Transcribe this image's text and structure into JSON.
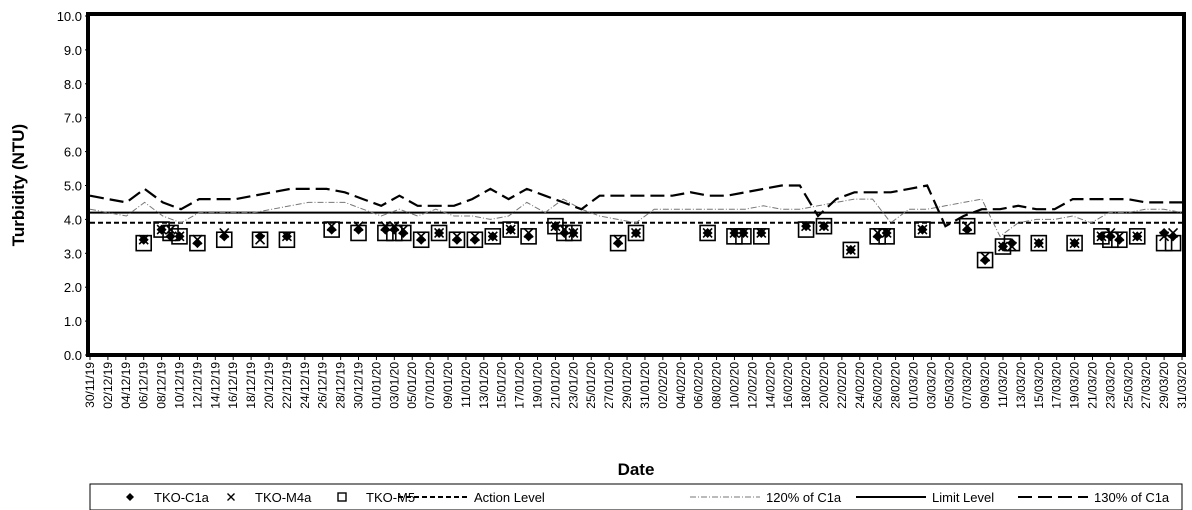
{
  "chart_data": {
    "type": "scatter",
    "xlabel": "Date",
    "ylabel": "Turbidity (NTU)",
    "ylim": [
      0,
      10
    ],
    "yticks": [
      "0.0",
      "1.0",
      "2.0",
      "3.0",
      "4.0",
      "5.0",
      "6.0",
      "7.0",
      "8.0",
      "9.0",
      "10.0"
    ],
    "x_start": "30/11/19",
    "x_end": "31/03/20",
    "x_tick_labels": [
      "30/11/19",
      "02/12/19",
      "04/12/19",
      "06/12/19",
      "08/12/19",
      "10/12/19",
      "12/12/19",
      "14/12/19",
      "16/12/19",
      "18/12/19",
      "20/12/19",
      "22/12/19",
      "24/12/19",
      "26/12/19",
      "28/12/19",
      "30/12/19",
      "01/01/20",
      "03/01/20",
      "05/01/20",
      "07/01/20",
      "09/01/20",
      "11/01/20",
      "13/01/20",
      "15/01/20",
      "17/01/20",
      "19/01/20",
      "21/01/20",
      "23/01/20",
      "25/01/20",
      "27/01/20",
      "29/01/20",
      "31/01/20",
      "02/02/20",
      "04/02/20",
      "06/02/20",
      "08/02/20",
      "10/02/20",
      "12/02/20",
      "14/02/20",
      "16/02/20",
      "18/02/20",
      "20/02/20",
      "22/02/20",
      "24/02/20",
      "26/02/20",
      "28/02/20",
      "01/03/20",
      "03/03/20",
      "05/03/20",
      "07/03/20",
      "09/03/20",
      "11/03/20",
      "13/03/20",
      "15/03/20",
      "17/03/20",
      "19/03/20",
      "21/03/20",
      "23/03/20",
      "25/03/20",
      "27/03/20",
      "29/03/20",
      "31/03/20"
    ],
    "legend_position": "bottom",
    "dates": [
      "06/12/19",
      "08/12/19",
      "09/12/19",
      "10/12/19",
      "12/12/19",
      "15/12/19",
      "19/12/19",
      "22/12/19",
      "27/12/19",
      "30/12/19",
      "02/01/20",
      "03/01/20",
      "04/01/20",
      "06/01/20",
      "08/01/20",
      "10/01/20",
      "12/01/20",
      "14/01/20",
      "16/01/20",
      "18/01/20",
      "21/01/20",
      "22/01/20",
      "23/01/20",
      "28/01/20",
      "30/01/20",
      "07/02/20",
      "10/02/20",
      "11/02/20",
      "13/02/20",
      "18/02/20",
      "20/02/20",
      "23/02/20",
      "26/02/20",
      "27/02/20",
      "02/03/20",
      "07/03/20",
      "09/03/20",
      "11/03/20",
      "12/03/20",
      "15/03/20",
      "19/03/20",
      "22/03/20",
      "23/03/20",
      "24/03/20",
      "26/03/20",
      "29/03/20",
      "30/03/20"
    ],
    "series": [
      {
        "name": "TKO-C1a",
        "marker": "diamond",
        "color": "#000000",
        "values": [
          3.4,
          3.7,
          3.5,
          3.5,
          3.3,
          3.5,
          3.5,
          3.5,
          3.7,
          3.7,
          3.7,
          3.7,
          3.6,
          3.4,
          3.6,
          3.4,
          3.4,
          3.5,
          3.7,
          3.5,
          3.8,
          3.6,
          3.6,
          3.3,
          3.6,
          3.6,
          3.6,
          3.6,
          3.6,
          3.8,
          3.8,
          3.1,
          3.5,
          3.6,
          3.7,
          3.7,
          2.8,
          3.2,
          3.3,
          3.3,
          3.3,
          3.5,
          3.5,
          3.4,
          3.5,
          3.6,
          3.5
        ]
      },
      {
        "name": "TKO-M4a",
        "marker": "x",
        "color": "#000000",
        "values": [
          3.4,
          3.7,
          3.7,
          3.5,
          3.4,
          3.6,
          3.4,
          3.5,
          3.8,
          3.8,
          3.8,
          3.8,
          3.7,
          3.5,
          3.6,
          3.5,
          3.5,
          3.5,
          3.7,
          3.6,
          3.8,
          3.7,
          3.6,
          3.4,
          3.6,
          3.6,
          3.6,
          3.6,
          3.6,
          3.8,
          3.8,
          3.1,
          3.6,
          3.6,
          3.7,
          3.8,
          2.9,
          3.2,
          3.2,
          3.3,
          3.3,
          3.5,
          3.6,
          3.5,
          3.5,
          3.5,
          3.6
        ]
      },
      {
        "name": "TKO-M5",
        "marker": "square",
        "color": "#000000",
        "values": [
          3.3,
          3.7,
          3.6,
          3.5,
          3.3,
          3.4,
          3.4,
          3.4,
          3.7,
          3.6,
          3.6,
          3.6,
          3.6,
          3.4,
          3.6,
          3.4,
          3.4,
          3.5,
          3.7,
          3.5,
          3.8,
          3.6,
          3.6,
          3.3,
          3.6,
          3.6,
          3.5,
          3.5,
          3.5,
          3.7,
          3.8,
          3.1,
          3.5,
          3.5,
          3.7,
          3.8,
          2.8,
          3.2,
          3.3,
          3.3,
          3.3,
          3.5,
          3.4,
          3.4,
          3.5,
          3.3,
          3.3
        ]
      }
    ],
    "reference_lines": [
      {
        "name": "Action Level",
        "style": "dashed",
        "value": 3.9
      },
      {
        "name": "Limit Level",
        "style": "solid",
        "value": 4.2
      }
    ],
    "computed_lines": [
      {
        "name": "120% of C1a",
        "style": "dash-dot-thin",
        "values": [
          4.3,
          4.2,
          4.1,
          4.5,
          4.1,
          3.9,
          4.2,
          4.2,
          4.2,
          4.2,
          4.3,
          4.4,
          4.5,
          4.5,
          4.5,
          4.3,
          4.1,
          4.3,
          4.1,
          4.3,
          4.1,
          4.1,
          4.0,
          4.1,
          4.5,
          4.2,
          4.6,
          4.3,
          4.1,
          4.0,
          3.9,
          4.3,
          4.3,
          4.3,
          4.3,
          4.3,
          4.3,
          4.4,
          4.3,
          4.3,
          4.4,
          4.5,
          4.6,
          4.6,
          3.9,
          4.3,
          4.3,
          4.4,
          4.5,
          4.6,
          3.5,
          3.9,
          4.0,
          4.0,
          4.1,
          3.9,
          4.2,
          4.2,
          4.3,
          4.3,
          4.2
        ]
      },
      {
        "name": "130% of C1a",
        "style": "long-dash",
        "values": [
          4.7,
          4.6,
          4.5,
          4.9,
          4.5,
          4.3,
          4.6,
          4.6,
          4.6,
          4.7,
          4.8,
          4.9,
          4.9,
          4.9,
          4.8,
          4.6,
          4.4,
          4.7,
          4.4,
          4.4,
          4.4,
          4.6,
          4.9,
          4.6,
          4.9,
          4.7,
          4.5,
          4.3,
          4.7,
          4.7,
          4.7,
          4.7,
          4.7,
          4.8,
          4.7,
          4.7,
          4.8,
          4.9,
          5.0,
          5.0,
          4.1,
          4.6,
          4.8,
          4.8,
          4.8,
          4.9,
          5.0,
          3.8,
          4.1,
          4.3,
          4.3,
          4.4,
          4.3,
          4.3,
          4.6,
          4.6,
          4.6,
          4.6,
          4.5,
          4.5,
          4.5
        ]
      }
    ]
  }
}
